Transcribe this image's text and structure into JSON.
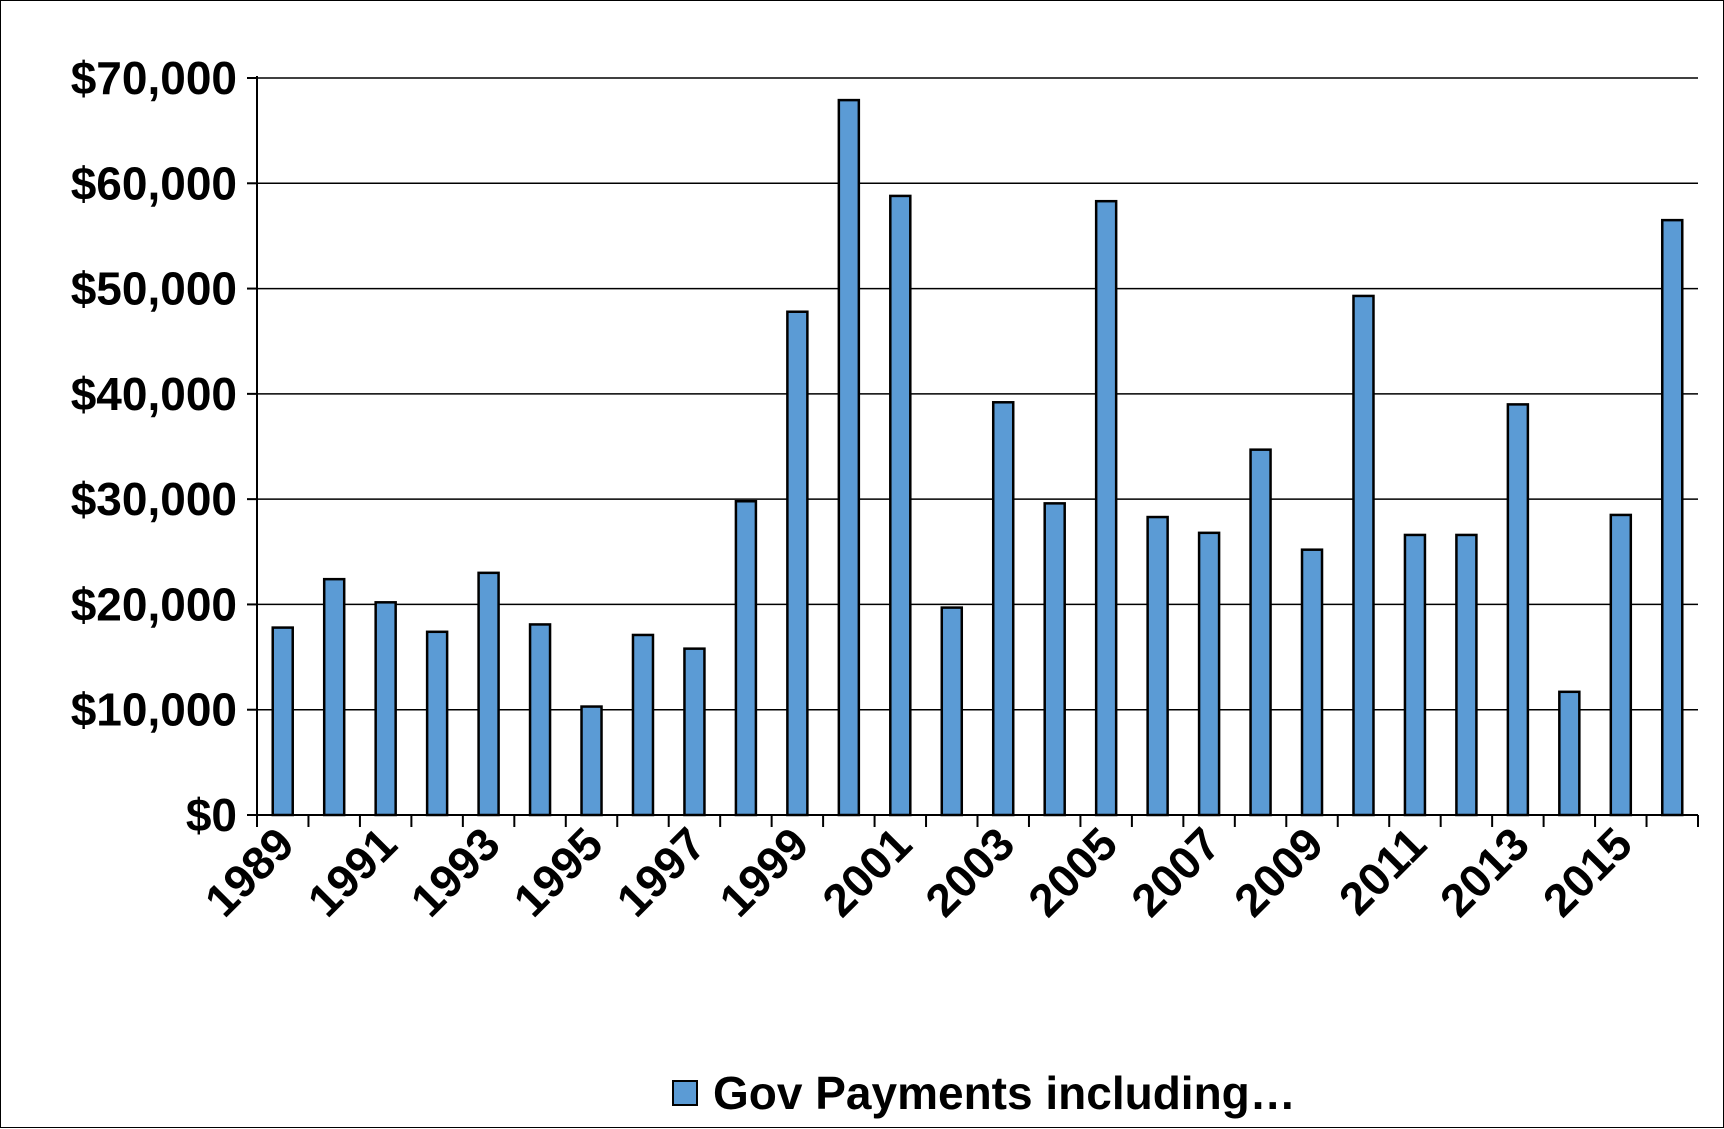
{
  "chart_data": {
    "type": "bar",
    "title": "",
    "xlabel": "",
    "ylabel": "",
    "categories": [
      "1989",
      "1990",
      "1991",
      "1992",
      "1993",
      "1994",
      "1995",
      "1996",
      "1997",
      "1998",
      "1999",
      "2000",
      "2001",
      "2002",
      "2003",
      "2004",
      "2005",
      "2006",
      "2007",
      "2008",
      "2009",
      "2010",
      "2011",
      "2012",
      "2013",
      "2014",
      "2015",
      "2016"
    ],
    "x_tick_labels": [
      "1989",
      "1991",
      "1993",
      "1995",
      "1997",
      "1999",
      "2001",
      "2003",
      "2005",
      "2007",
      "2009",
      "2011",
      "2013",
      "2015"
    ],
    "series": [
      {
        "name": "Gov Payments including…",
        "color": "#5b9bd5",
        "values": [
          17800,
          22400,
          20200,
          17400,
          23000,
          18100,
          10300,
          17100,
          15800,
          29800,
          47800,
          67900,
          58800,
          19700,
          39200,
          29600,
          58300,
          28300,
          26800,
          34700,
          25200,
          49300,
          26600,
          26600,
          39000,
          11700,
          28500,
          56500
        ]
      }
    ],
    "ylim": [
      0,
      70000
    ],
    "y_ticks": [
      0,
      10000,
      20000,
      30000,
      40000,
      50000,
      60000,
      70000
    ],
    "y_tick_labels": [
      "$0",
      "$10,000",
      "$20,000",
      "$30,000",
      "$40,000",
      "$50,000",
      "$60,000",
      "$70,000"
    ],
    "grid": true,
    "legend_position": "bottom"
  },
  "colors": {
    "bar_fill": "#5b9bd5",
    "bar_stroke": "#000000",
    "grid": "#000000"
  }
}
